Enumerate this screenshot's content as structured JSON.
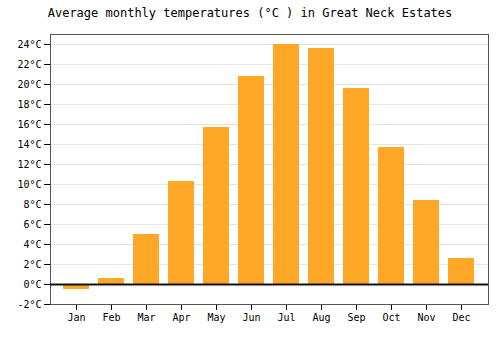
{
  "chart_data": {
    "type": "bar",
    "title": "Average monthly temperatures (°C ) in Great Neck Estates",
    "categories": [
      "Jan",
      "Feb",
      "Mar",
      "Apr",
      "May",
      "Jun",
      "Jul",
      "Aug",
      "Sep",
      "Oct",
      "Nov",
      "Dec"
    ],
    "values": [
      -0.5,
      0.6,
      5.0,
      10.3,
      15.7,
      20.8,
      24.0,
      23.6,
      19.6,
      13.7,
      8.4,
      2.6
    ],
    "color": "#FFA726",
    "ylim": [
      -2,
      25
    ],
    "yticks": [
      {
        "value": -2,
        "label": "-2°C"
      },
      {
        "value": 0,
        "label": "0°C"
      },
      {
        "value": 2,
        "label": "2°C"
      },
      {
        "value": 4,
        "label": "4°C"
      },
      {
        "value": 6,
        "label": "6°C"
      },
      {
        "value": 8,
        "label": "8°C"
      },
      {
        "value": 10,
        "label": "10°C"
      },
      {
        "value": 12,
        "label": "12°C"
      },
      {
        "value": 14,
        "label": "14°C"
      },
      {
        "value": 16,
        "label": "16°C"
      },
      {
        "value": 18,
        "label": "18°C"
      },
      {
        "value": 20,
        "label": "20°C"
      },
      {
        "value": 22,
        "label": "22°C"
      },
      {
        "value": 24,
        "label": "24°C"
      }
    ],
    "grid": true
  }
}
